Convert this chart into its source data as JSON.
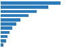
{
  "values": [
    1457.6,
    1150.0,
    880.0,
    680.0,
    490.0,
    390.0,
    290.0,
    220.0,
    175.0,
    145.0,
    80.0
  ],
  "bar_color": "#2b7bba",
  "background_color": "#ffffff",
  "xlim": [
    0,
    1600
  ],
  "bar_height": 0.72,
  "n_bars": 11
}
